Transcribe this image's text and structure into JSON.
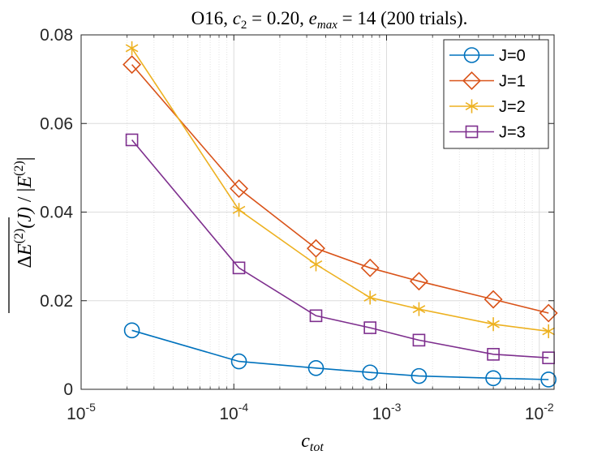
{
  "chart_data": {
    "type": "line",
    "title": "O16, c_2 = 0.20, e_max = 14 (200 trials).",
    "title_parts": {
      "prefix": "O16, ",
      "c2_symbol": "c",
      "c2_sub": "2",
      "c2_value": " = 0.20, ",
      "emax_symbol": "e",
      "emax_sub": "max",
      "emax_value": " = 14 (200 trials)."
    },
    "xlabel": "c_tot",
    "xlabel_parts": {
      "symbol": "c",
      "sub": "tot"
    },
    "ylabel": "ΔE^(2)(J) / |E^(2)|",
    "ylabel_parts": {
      "delta": "Δ",
      "e": "E",
      "sup": "(2)",
      "arg": "(J)",
      "sep": " / ",
      "denom_open": "|",
      "denom_e": "E",
      "denom_sup": "(2)",
      "denom_close": "|"
    },
    "x_scale": "log",
    "xlim": [
      1e-05,
      0.0125
    ],
    "ylim": [
      0,
      0.08
    ],
    "x_ticks": [
      {
        "base": "10",
        "exp": "-5",
        "value": 1e-05
      },
      {
        "base": "10",
        "exp": "-4",
        "value": 0.0001
      },
      {
        "base": "10",
        "exp": "-3",
        "value": 0.001
      },
      {
        "base": "10",
        "exp": "-2",
        "value": 0.01
      }
    ],
    "y_ticks": [
      {
        "label": "0",
        "value": 0
      },
      {
        "label": "0.02",
        "value": 0.02
      },
      {
        "label": "0.04",
        "value": 0.04
      },
      {
        "label": "0.06",
        "value": 0.06
      },
      {
        "label": "0.08",
        "value": 0.08
      }
    ],
    "grid": true,
    "legend_position": "top-right",
    "x": [
      2.15e-05,
      0.000108,
      0.000345,
      0.00078,
      0.00163,
      0.005,
      0.0115
    ],
    "series": [
      {
        "name": "J=0",
        "color": "#0072BD",
        "marker": "circle",
        "values": [
          0.0133,
          0.0063,
          0.0048,
          0.0038,
          0.003,
          0.0025,
          0.0022
        ]
      },
      {
        "name": "J=1",
        "color": "#D95319",
        "marker": "diamond",
        "values": [
          0.0733,
          0.0453,
          0.0318,
          0.0274,
          0.0244,
          0.0203,
          0.0172
        ]
      },
      {
        "name": "J=2",
        "color": "#EDB120",
        "marker": "asterisk",
        "values": [
          0.077,
          0.0405,
          0.0282,
          0.0207,
          0.0181,
          0.0147,
          0.0131
        ]
      },
      {
        "name": "J=3",
        "color": "#7E2F8E",
        "marker": "square",
        "values": [
          0.0563,
          0.0274,
          0.0166,
          0.0139,
          0.0111,
          0.0079,
          0.0071
        ]
      }
    ]
  }
}
